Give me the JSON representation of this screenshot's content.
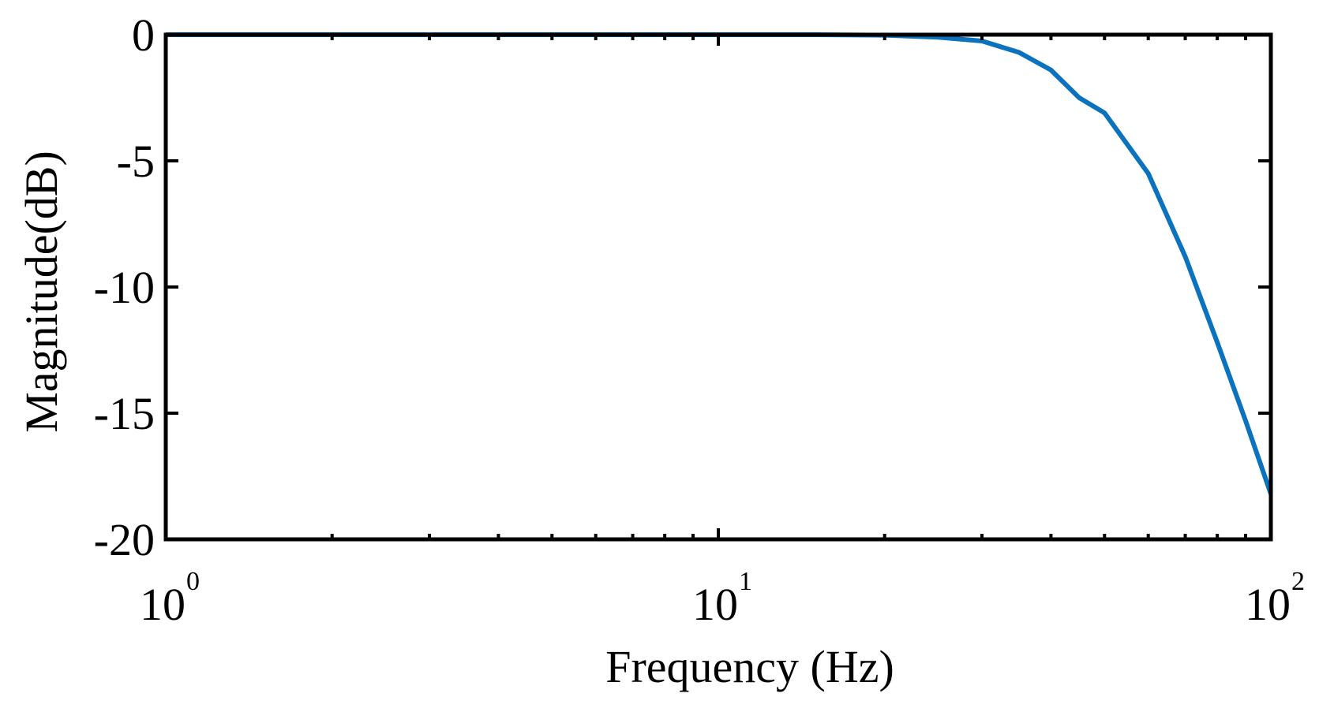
{
  "chart_data": {
    "type": "line",
    "title": "",
    "xlabel": "Frequency (Hz)",
    "ylabel": "Magnitude(dB)",
    "xscale": "log",
    "xlim": [
      1,
      100
    ],
    "ylim": [
      -20,
      0
    ],
    "grid": false,
    "legend": "none",
    "x_ticks": [
      {
        "value": 1,
        "base": "10",
        "exp": "0"
      },
      {
        "value": 10,
        "base": "10",
        "exp": "1"
      },
      {
        "value": 100,
        "base": "10",
        "exp": "2"
      }
    ],
    "y_ticks": [
      {
        "value": 0,
        "label": "0"
      },
      {
        "value": -5,
        "label": "-5"
      },
      {
        "value": -10,
        "label": "-10"
      },
      {
        "value": -15,
        "label": "-15"
      },
      {
        "value": -20,
        "label": "-20"
      }
    ],
    "series": [
      {
        "color": "#0b72bd",
        "x": [
          1,
          2,
          5,
          10,
          15,
          20,
          25,
          30,
          35,
          40,
          45,
          50,
          60,
          70,
          80,
          90,
          100
        ],
        "y": [
          0,
          0,
          0,
          0,
          0,
          -0.02,
          -0.1,
          -0.25,
          -0.7,
          -1.4,
          -2.5,
          -3.1,
          -5.5,
          -8.8,
          -12.2,
          -15.3,
          -18.2
        ]
      }
    ]
  }
}
